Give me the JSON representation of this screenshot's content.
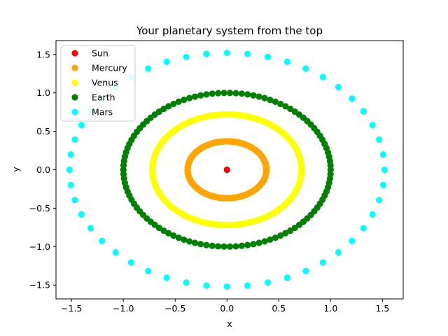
{
  "chart_data": {
    "type": "scatter",
    "title": "Your planetary system from the top",
    "xlabel": "x",
    "ylabel": "y",
    "xlim": [
      -1.65,
      1.7
    ],
    "ylim": [
      -1.68,
      1.68
    ],
    "xticks": [
      -1.5,
      -1.0,
      -0.5,
      0.0,
      0.5,
      1.0,
      1.5
    ],
    "yticks": [
      -1.5,
      -1.0,
      -0.5,
      0.0,
      0.5,
      1.0,
      1.5
    ],
    "xtick_labels": [
      "−1.5",
      "−1.0",
      "−0.5",
      "0.0",
      "0.5",
      "1.0",
      "1.5"
    ],
    "ytick_labels": [
      "−1.5",
      "−1.0",
      "−0.5",
      "0.0",
      "0.5",
      "1.0",
      "1.5"
    ],
    "grid": false,
    "legend_position": "top-left",
    "series": [
      {
        "name": "Sun",
        "color": "#ff0000",
        "rx": 0.0,
        "ry": 0.0,
        "points": 1
      },
      {
        "name": "Mercury",
        "color": "#ffa500",
        "rx": 0.38,
        "ry": 0.37,
        "points": 300
      },
      {
        "name": "Venus",
        "color": "#ffff00",
        "rx": 0.72,
        "ry": 0.72,
        "points": 220
      },
      {
        "name": "Earth",
        "color": "#008000",
        "rx": 1.0,
        "ry": 1.0,
        "points": 110
      },
      {
        "name": "Mars",
        "color": "#00ffff",
        "rx": 1.52,
        "ry": 1.52,
        "points": 48
      }
    ]
  }
}
